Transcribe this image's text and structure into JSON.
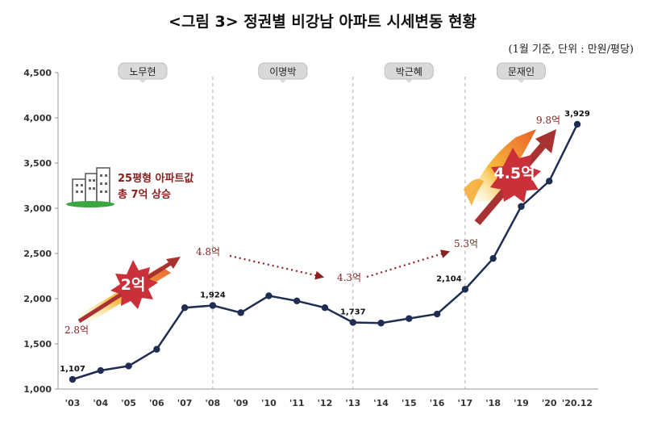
{
  "title": "<그림 3> 정권별 비강남 아파트 시세변동 현황",
  "unit": "(1월 기준, 단위 : 만원/평당)",
  "callout": {
    "line1": "25평형 아파트값",
    "line2": "총 7억 상승",
    "icon": "buildings-icon"
  },
  "eras": [
    "노무현",
    "이명박",
    "박근혜",
    "문재인"
  ],
  "flows": [
    {
      "label": "2.8억",
      "kind": "start"
    },
    {
      "label": "4.8억",
      "kind": "end"
    },
    {
      "label": "4.3억",
      "kind": "mid"
    },
    {
      "label": "5.3억",
      "kind": "mid"
    },
    {
      "label": "9.8억",
      "kind": "end"
    }
  ],
  "badges": [
    "2억",
    "4.5억"
  ],
  "colors": {
    "line": "#1f2d52",
    "arrow": "#a83232",
    "flame": "#f4a21f",
    "badge": "#c9303a"
  },
  "chart_data": {
    "type": "line",
    "title": "<그림 3> 정권별 비강남 아파트 시세변동 현황",
    "ylabel": "만원/평당",
    "ylim": [
      1000,
      4500
    ],
    "yticks": [
      "1,000",
      "1,500",
      "2,000",
      "2,500",
      "3,000",
      "3,500",
      "4,000",
      "4,500"
    ],
    "categories": [
      "'03",
      "'04",
      "'05",
      "'06",
      "'07",
      "'08",
      "'09",
      "'10",
      "'11",
      "'12",
      "'13",
      "'14",
      "'15",
      "'16",
      "'17",
      "'18",
      "'19",
      "'20",
      "'20.12"
    ],
    "values": [
      1107,
      1205,
      1255,
      1440,
      1900,
      1924,
      1845,
      2032,
      1975,
      1900,
      1737,
      1730,
      1780,
      1830,
      2104,
      2445,
      3020,
      3300,
      3929
    ],
    "point_labels": [
      {
        "index": 0,
        "text": "1,107"
      },
      {
        "index": 5,
        "text": "1,924"
      },
      {
        "index": 10,
        "text": "1,737"
      },
      {
        "index": 14,
        "text": "2,104"
      },
      {
        "index": 18,
        "text": "3,929"
      }
    ],
    "era_boundaries": [
      5,
      10,
      14
    ]
  }
}
